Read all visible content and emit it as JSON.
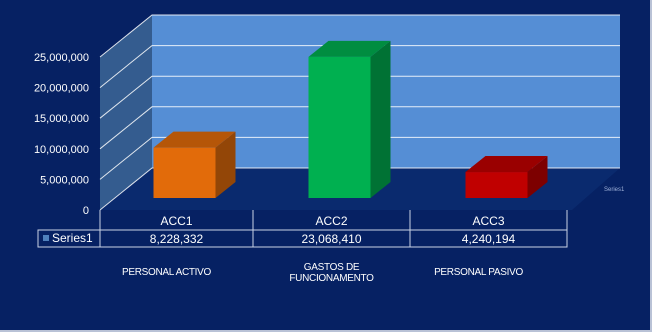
{
  "chart_data": {
    "type": "bar",
    "categories": [
      "ACC1",
      "ACC2",
      "ACC3"
    ],
    "series": [
      {
        "name": "Series1",
        "values": [
          8228332,
          23068410,
          4240194
        ]
      }
    ],
    "value_labels": [
      "8,228,332",
      "23,068,410",
      "4,240,194"
    ],
    "ylim": [
      0,
      25000000
    ],
    "yticks": [
      0,
      5000000,
      10000000,
      15000000,
      20000000,
      25000000
    ],
    "ytick_labels": [
      "0",
      "5,000,000",
      "10,000,000",
      "15,000,000",
      "20,000,000",
      "25,000,000"
    ],
    "bar_colors": [
      "#e26b0a",
      "#00b050",
      "#c00000"
    ],
    "captions": [
      "PERSONAL ACTIVO",
      "GASTOS DE\nFUNCIONAMENTO",
      "PERSONAL PASIVO"
    ],
    "legend_label": "Series1",
    "three_d": true,
    "grid": true,
    "data_table": true
  },
  "colors": {
    "background": "#062163",
    "wall": "#558ed5",
    "side_wall": "#345c8f",
    "grid": "#ffffff"
  }
}
